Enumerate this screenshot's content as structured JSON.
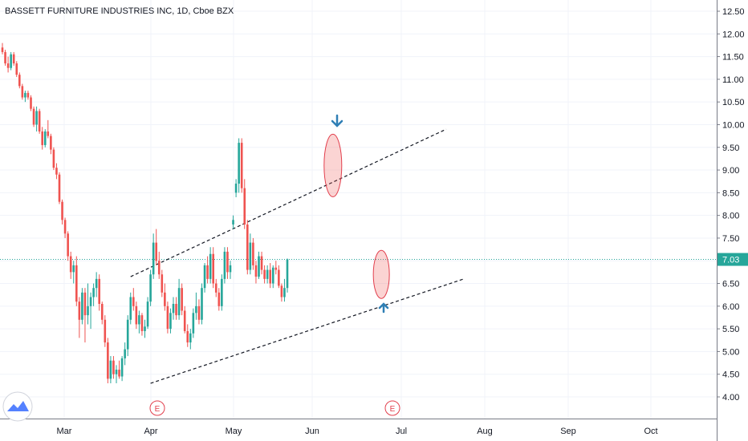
{
  "title": "BASSETT FURNITURE INDUSTRIES INC, 1D, Cboe BZX",
  "colors": {
    "up": "#26a69a",
    "down": "#ef5350",
    "last_price": "#26a69a",
    "earnings": "#e2404e",
    "marker": "#2f7fb5"
  },
  "chart_data": {
    "type": "candlestick",
    "ylim": [
      3.7,
      12.7
    ],
    "y_ticks": [
      "12.50",
      "12.00",
      "11.50",
      "11.00",
      "10.50",
      "10.00",
      "9.50",
      "9.00",
      "8.50",
      "8.00",
      "7.50",
      "7.00",
      "6.50",
      "6.00",
      "5.50",
      "5.00",
      "4.50",
      "4.00"
    ],
    "x_ticks": [
      "Mar",
      "Apr",
      "May",
      "Jun",
      "Jul",
      "Aug",
      "Sep",
      "Oct"
    ],
    "last_price": "7.03",
    "earnings_markers": [
      {
        "label": "E",
        "date": "Apr 1"
      },
      {
        "label": "E",
        "date": "Jun 29"
      }
    ],
    "candles": [
      [
        11.7,
        11.8,
        11.55,
        11.6
      ],
      [
        11.6,
        11.65,
        11.3,
        11.35
      ],
      [
        11.35,
        11.5,
        11.15,
        11.25
      ],
      [
        11.25,
        11.6,
        11.2,
        11.55
      ],
      [
        11.55,
        11.6,
        11.3,
        11.35
      ],
      [
        11.35,
        11.4,
        11.05,
        11.1
      ],
      [
        11.1,
        11.15,
        10.8,
        10.85
      ],
      [
        10.85,
        10.9,
        10.55,
        10.6
      ],
      [
        10.6,
        10.75,
        10.5,
        10.7
      ],
      [
        10.7,
        10.75,
        10.55,
        10.6
      ],
      [
        10.6,
        10.65,
        10.3,
        10.35
      ],
      [
        10.35,
        10.4,
        9.95,
        10.0
      ],
      [
        10.0,
        10.4,
        9.85,
        10.3
      ],
      [
        10.3,
        10.35,
        9.8,
        9.85
      ],
      [
        9.85,
        9.95,
        9.45,
        9.55
      ],
      [
        9.55,
        9.9,
        9.5,
        9.85
      ],
      [
        9.85,
        10.1,
        9.7,
        9.75
      ],
      [
        9.75,
        9.8,
        9.35,
        9.45
      ],
      [
        9.45,
        9.5,
        9.0,
        9.05
      ],
      [
        9.05,
        9.15,
        8.8,
        8.9
      ],
      [
        8.9,
        8.95,
        8.25,
        8.3
      ],
      [
        8.3,
        8.35,
        7.8,
        7.9
      ],
      [
        7.9,
        7.95,
        7.5,
        7.6
      ],
      [
        7.6,
        7.65,
        7.0,
        7.1
      ],
      [
        7.1,
        7.2,
        6.6,
        6.75
      ],
      [
        6.75,
        7.0,
        6.5,
        6.9
      ],
      [
        6.9,
        7.1,
        6.0,
        6.1
      ],
      [
        6.1,
        6.2,
        5.3,
        5.7
      ],
      [
        5.7,
        6.4,
        5.6,
        6.3
      ],
      [
        6.3,
        6.4,
        5.2,
        5.8
      ],
      [
        5.8,
        6.5,
        5.6,
        6.0
      ],
      [
        6.0,
        6.3,
        5.5,
        6.2
      ],
      [
        6.2,
        6.5,
        6.0,
        6.4
      ],
      [
        6.4,
        6.75,
        6.2,
        6.6
      ],
      [
        6.6,
        6.7,
        5.9,
        6.05
      ],
      [
        6.05,
        6.1,
        5.6,
        5.7
      ],
      [
        5.7,
        5.8,
        5.1,
        5.2
      ],
      [
        5.2,
        5.3,
        4.3,
        4.4
      ],
      [
        4.4,
        4.9,
        4.3,
        4.8
      ],
      [
        4.8,
        4.9,
        4.4,
        4.5
      ],
      [
        4.5,
        4.7,
        4.3,
        4.6
      ],
      [
        4.6,
        4.8,
        4.4,
        4.45
      ],
      [
        4.45,
        4.9,
        4.35,
        4.85
      ],
      [
        4.85,
        5.2,
        4.7,
        5.05
      ],
      [
        5.05,
        5.8,
        4.9,
        5.7
      ],
      [
        5.7,
        6.3,
        5.6,
        6.2
      ],
      [
        6.2,
        6.4,
        5.9,
        6.0
      ],
      [
        6.0,
        6.1,
        5.5,
        5.6
      ],
      [
        5.6,
        5.9,
        5.4,
        5.8
      ],
      [
        5.8,
        5.85,
        5.35,
        5.45
      ],
      [
        5.45,
        5.7,
        5.3,
        5.55
      ],
      [
        5.55,
        6.2,
        5.5,
        6.1
      ],
      [
        6.1,
        6.8,
        6.0,
        6.7
      ],
      [
        6.7,
        7.6,
        6.6,
        7.4
      ],
      [
        7.4,
        7.7,
        6.9,
        7.0
      ],
      [
        7.0,
        7.2,
        6.6,
        6.7
      ],
      [
        6.7,
        6.8,
        6.2,
        6.3
      ],
      [
        6.3,
        6.5,
        5.9,
        6.0
      ],
      [
        6.0,
        6.1,
        5.4,
        5.5
      ],
      [
        5.5,
        5.95,
        5.4,
        5.85
      ],
      [
        5.85,
        6.2,
        5.7,
        6.05
      ],
      [
        6.05,
        6.2,
        5.7,
        5.8
      ],
      [
        5.8,
        6.6,
        5.7,
        6.4
      ],
      [
        6.4,
        6.5,
        5.8,
        5.9
      ],
      [
        5.9,
        6.0,
        5.4,
        5.45
      ],
      [
        5.45,
        5.6,
        5.1,
        5.2
      ],
      [
        5.2,
        5.5,
        5.05,
        5.4
      ],
      [
        5.4,
        5.95,
        5.3,
        5.85
      ],
      [
        5.85,
        6.3,
        5.7,
        6.0
      ],
      [
        6.0,
        6.15,
        5.6,
        5.7
      ],
      [
        5.7,
        6.5,
        5.6,
        6.4
      ],
      [
        6.4,
        6.95,
        6.3,
        6.9
      ],
      [
        6.9,
        7.1,
        6.5,
        6.6
      ],
      [
        6.6,
        7.3,
        6.5,
        7.15
      ],
      [
        7.15,
        7.3,
        6.4,
        6.5
      ],
      [
        6.5,
        6.6,
        6.2,
        6.3
      ],
      [
        6.3,
        6.4,
        5.9,
        6.0
      ],
      [
        6.0,
        6.7,
        5.9,
        6.6
      ],
      [
        6.6,
        7.3,
        6.5,
        7.2
      ],
      [
        7.2,
        7.3,
        6.6,
        6.75
      ],
      [
        6.75,
        7.0,
        6.6,
        6.9
      ],
      [
        7.8,
        8.0,
        7.7,
        7.9
      ],
      [
        8.5,
        8.8,
        8.4,
        8.7
      ],
      [
        8.7,
        9.7,
        8.5,
        9.6
      ],
      [
        9.6,
        9.7,
        8.5,
        8.6
      ],
      [
        8.6,
        8.8,
        7.7,
        7.8
      ],
      [
        7.8,
        7.9,
        6.7,
        6.8
      ],
      [
        6.8,
        7.6,
        6.7,
        7.4
      ],
      [
        7.4,
        7.5,
        6.8,
        6.9
      ],
      [
        6.9,
        7.0,
        6.5,
        6.65
      ],
      [
        6.65,
        7.2,
        6.6,
        7.1
      ],
      [
        7.1,
        7.2,
        6.7,
        6.8
      ],
      [
        6.8,
        6.9,
        6.5,
        6.6
      ],
      [
        6.6,
        6.9,
        6.5,
        6.8
      ],
      [
        6.8,
        6.95,
        6.4,
        6.5
      ],
      [
        6.5,
        6.9,
        6.4,
        6.85
      ],
      [
        6.85,
        7.0,
        6.7,
        6.8
      ],
      [
        6.8,
        6.9,
        6.4,
        6.45
      ],
      [
        6.45,
        6.5,
        6.1,
        6.2
      ],
      [
        6.2,
        6.6,
        6.1,
        6.4
      ],
      [
        6.4,
        7.05,
        6.3,
        7.03
      ]
    ],
    "annotations": {
      "upper_channel": {
        "from": [
          "candle 25",
          6.65
        ],
        "to": [
          "candle 127",
          9.9
        ]
      },
      "lower_channel": {
        "from": [
          "candle 37",
          4.3
        ],
        "to": [
          "candle 132",
          6.6
        ]
      },
      "highlight_ellipses": [
        "peak near Jun 10",
        "pullback near Jun 28"
      ],
      "arrows": [
        "down arrow above Jun peak",
        "up arrow below Jun 28 low"
      ]
    }
  }
}
